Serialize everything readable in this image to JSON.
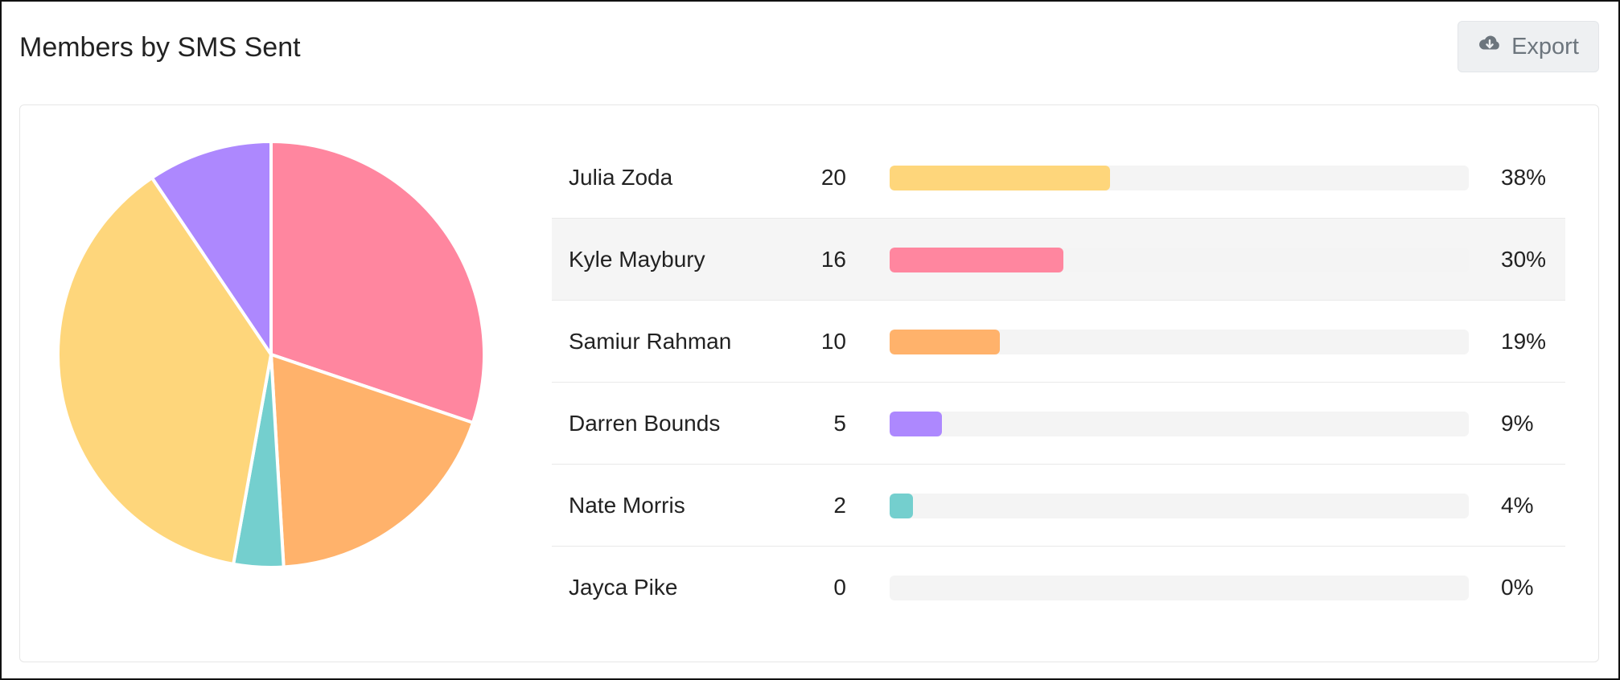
{
  "header": {
    "title": "Members by SMS Sent",
    "export_label": "Export",
    "export_icon": "cloud-download-icon"
  },
  "chart_data": {
    "type": "pie",
    "title": "Members by SMS Sent",
    "categories": [
      "Julia Zoda",
      "Kyle Maybury",
      "Samiur Rahman",
      "Darren Bounds",
      "Nate Morris",
      "Jayca Pike"
    ],
    "values": [
      20,
      16,
      10,
      5,
      2,
      0
    ],
    "percent_labels": [
      "38%",
      "30%",
      "19%",
      "9%",
      "4%",
      "0%"
    ],
    "percents": [
      38,
      30,
      19,
      9,
      4,
      0
    ],
    "colors": [
      "#fed67b",
      "#ff869f",
      "#ffb26b",
      "#ad88fe",
      "#74cfce",
      "#c9cbcf"
    ],
    "highlighted_row": 1
  }
}
